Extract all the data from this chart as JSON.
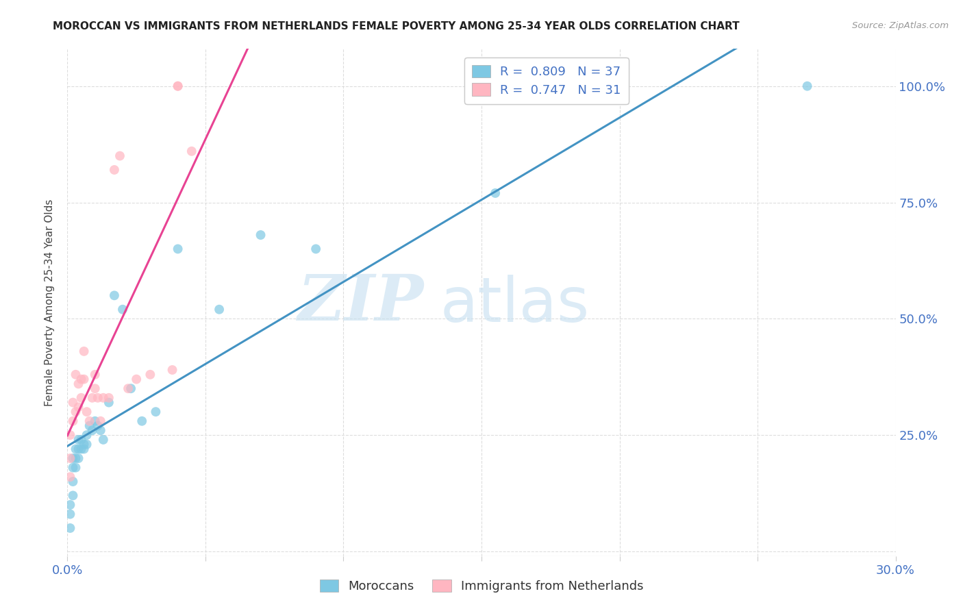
{
  "title": "MOROCCAN VS IMMIGRANTS FROM NETHERLANDS FEMALE POVERTY AMONG 25-34 YEAR OLDS CORRELATION CHART",
  "source": "Source: ZipAtlas.com",
  "ylabel": "Female Poverty Among 25-34 Year Olds",
  "xlim": [
    0.0,
    0.3
  ],
  "ylim": [
    -0.01,
    1.08
  ],
  "xtick_positions": [
    0.0,
    0.05,
    0.1,
    0.15,
    0.2,
    0.25,
    0.3
  ],
  "ytick_positions": [
    0.0,
    0.25,
    0.5,
    0.75,
    1.0
  ],
  "ytick_labels_right": [
    "",
    "25.0%",
    "50.0%",
    "75.0%",
    "100.0%"
  ],
  "blue_R": "0.809",
  "blue_N": "37",
  "pink_R": "0.747",
  "pink_N": "31",
  "blue_color": "#7ec8e3",
  "pink_color": "#ffb6c1",
  "blue_line_color": "#4393c3",
  "pink_line_color": "#e84393",
  "watermark_ZIP": "ZIP",
  "watermark_atlas": "atlas",
  "legend_labels": [
    "Moroccans",
    "Immigrants from Netherlands"
  ],
  "blue_scatter_x": [
    0.001,
    0.001,
    0.001,
    0.002,
    0.002,
    0.002,
    0.002,
    0.003,
    0.003,
    0.003,
    0.004,
    0.004,
    0.004,
    0.005,
    0.005,
    0.006,
    0.006,
    0.007,
    0.007,
    0.008,
    0.009,
    0.01,
    0.011,
    0.012,
    0.013,
    0.015,
    0.017,
    0.02,
    0.023,
    0.027,
    0.032,
    0.04,
    0.055,
    0.07,
    0.09,
    0.155,
    0.268
  ],
  "blue_scatter_y": [
    0.05,
    0.08,
    0.1,
    0.12,
    0.15,
    0.18,
    0.2,
    0.18,
    0.22,
    0.2,
    0.22,
    0.24,
    0.2,
    0.22,
    0.24,
    0.22,
    0.23,
    0.23,
    0.25,
    0.27,
    0.26,
    0.28,
    0.27,
    0.26,
    0.24,
    0.32,
    0.55,
    0.52,
    0.35,
    0.28,
    0.3,
    0.65,
    0.52,
    0.68,
    0.65,
    0.77,
    1.0
  ],
  "pink_scatter_x": [
    0.001,
    0.001,
    0.001,
    0.002,
    0.002,
    0.003,
    0.003,
    0.004,
    0.004,
    0.005,
    0.005,
    0.006,
    0.006,
    0.007,
    0.008,
    0.009,
    0.01,
    0.01,
    0.011,
    0.012,
    0.013,
    0.015,
    0.017,
    0.019,
    0.022,
    0.025,
    0.03,
    0.038,
    0.04,
    0.04,
    0.045
  ],
  "pink_scatter_y": [
    0.16,
    0.2,
    0.25,
    0.28,
    0.32,
    0.3,
    0.38,
    0.31,
    0.36,
    0.33,
    0.37,
    0.37,
    0.43,
    0.3,
    0.28,
    0.33,
    0.35,
    0.38,
    0.33,
    0.28,
    0.33,
    0.33,
    0.82,
    0.85,
    0.35,
    0.37,
    0.38,
    0.39,
    1.0,
    1.0,
    0.86
  ],
  "background_color": "#ffffff",
  "grid_color": "#dddddd",
  "axis_tick_color": "#4472c4",
  "title_color": "#222222"
}
